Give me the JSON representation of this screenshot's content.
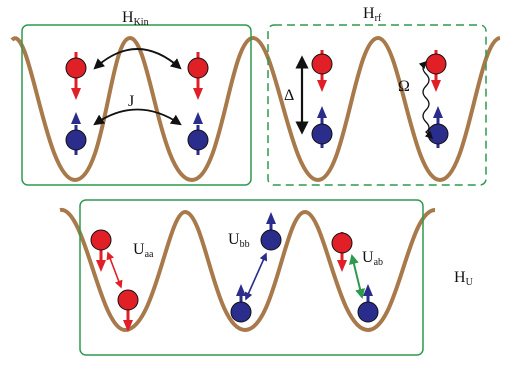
{
  "colors": {
    "potential": "#a8794a",
    "box": "#2f9a4e",
    "spin_up": "#2b2d8c",
    "spin_down": "#e01f26",
    "tunneling": "#111111",
    "u_aa": "#e01f26",
    "u_bb": "#2b2d8c",
    "u_ab": "#2f9a4e"
  },
  "labels": {
    "h_kin": {
      "main": "H",
      "sub": "Kin"
    },
    "h_rf": {
      "main": "H",
      "sub": "rf"
    },
    "h_u": {
      "main": "H",
      "sub": "U"
    },
    "j": "J",
    "delta": "Δ",
    "omega": "Ω",
    "u_aa": {
      "main": "U",
      "sub": "aa"
    },
    "u_bb": {
      "main": "U",
      "sub": "bb"
    },
    "u_ab": {
      "main": "U",
      "sub": "ab"
    }
  }
}
